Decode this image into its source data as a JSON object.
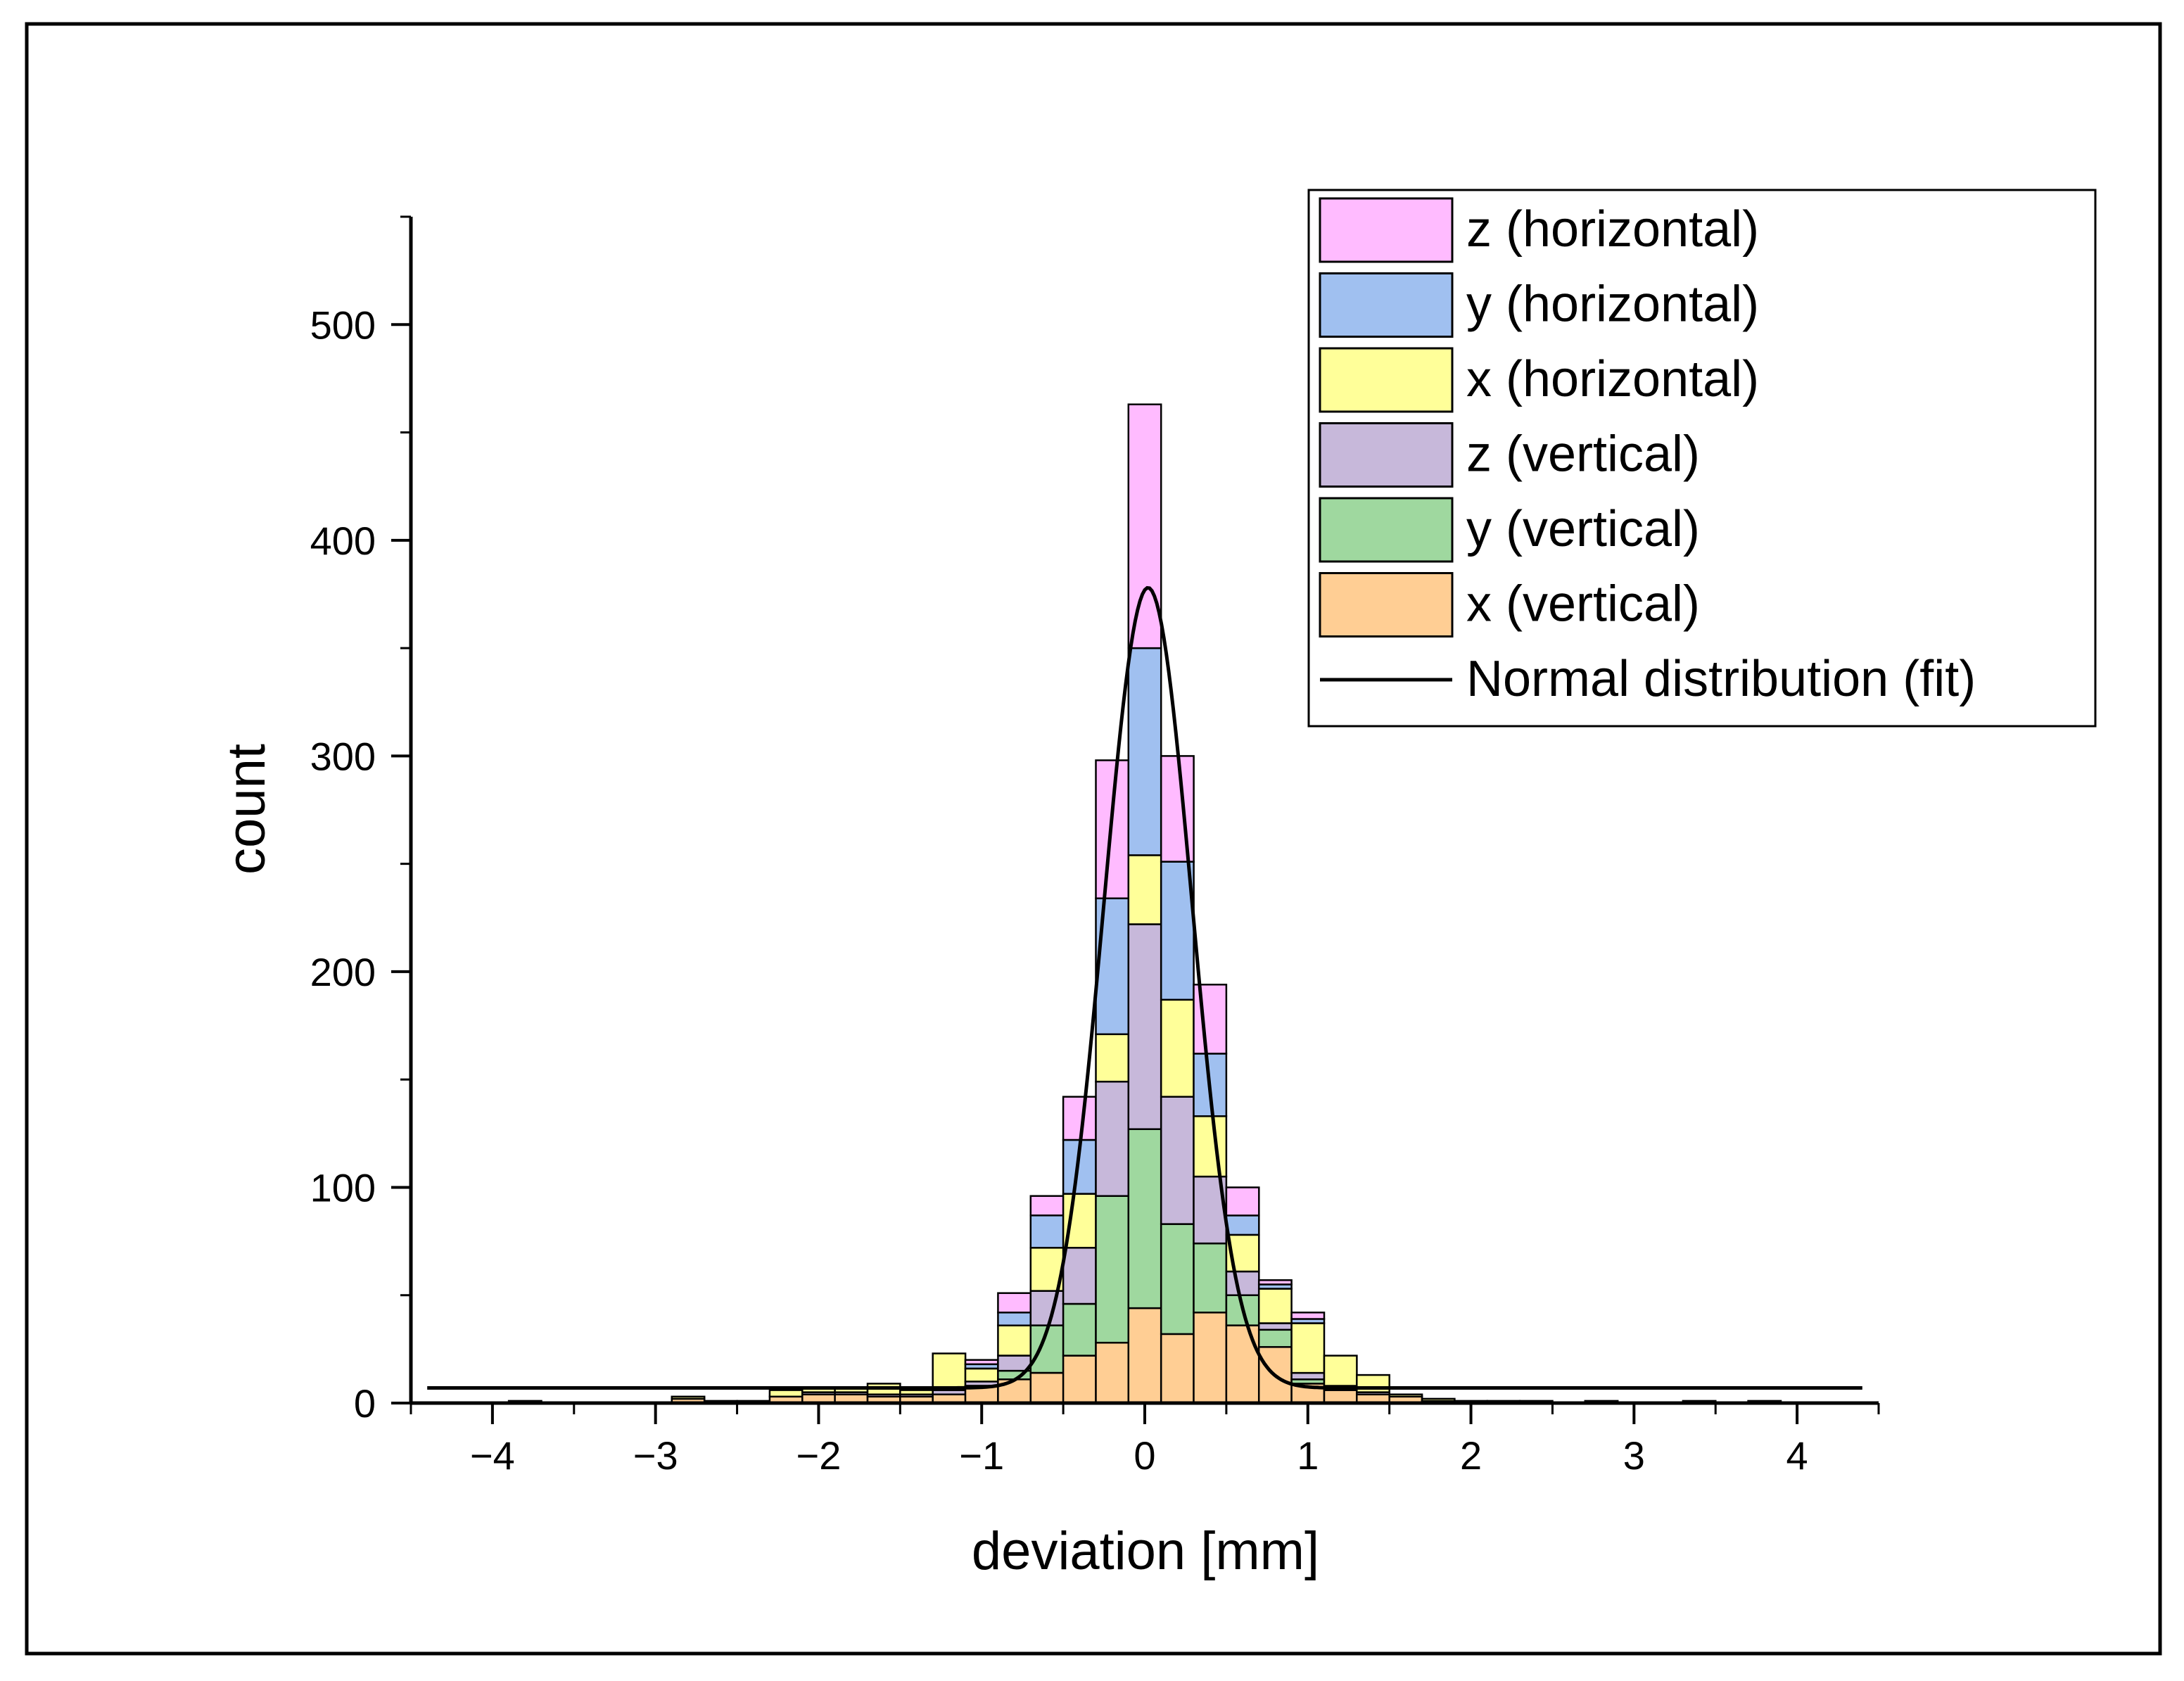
{
  "chart_data": {
    "type": "bar",
    "stacked": true,
    "xlabel": "deviation [mm]",
    "ylabel": "count",
    "xlim": [
      -4.5,
      4.5
    ],
    "ylim": [
      0,
      550
    ],
    "x_ticks": [
      -4,
      -3,
      -2,
      -1,
      0,
      1,
      2,
      3,
      4
    ],
    "x_tick_labels": [
      "−4",
      "−3",
      "−2",
      "−1",
      "0",
      "1",
      "2",
      "3",
      "4"
    ],
    "y_ticks": [
      0,
      100,
      200,
      300,
      400,
      500
    ],
    "y_tick_labels": [
      "0",
      "100",
      "200",
      "300",
      "400",
      "500"
    ],
    "bin_width": 0.2,
    "bin_centers": [
      -3.8,
      -2.8,
      -2.6,
      -2.4,
      -2.2,
      -2.0,
      -1.8,
      -1.6,
      -1.4,
      -1.2,
      -1.0,
      -0.8,
      -0.6,
      -0.4,
      -0.2,
      0.0,
      0.2,
      0.4,
      0.6,
      0.8,
      1.0,
      1.2,
      1.4,
      1.6,
      1.8,
      2.0,
      2.2,
      2.4,
      2.8,
      3.4,
      3.8
    ],
    "series": [
      {
        "name": "x (vertical)",
        "color": "#FFCE94",
        "values": [
          1,
          2,
          1,
          1,
          3,
          4,
          4,
          3,
          3,
          4,
          8,
          11,
          14,
          22,
          28,
          44,
          32,
          42,
          36,
          26,
          9,
          6,
          4,
          3,
          1,
          1,
          1,
          1,
          1,
          1,
          1
        ]
      },
      {
        "name": "y (vertical)",
        "color": "#9FD89F",
        "values": [
          0,
          0,
          0,
          0,
          0,
          0,
          0,
          0,
          0,
          0,
          0,
          4,
          22,
          24,
          68,
          83,
          51,
          32,
          14,
          8,
          2,
          0,
          0,
          0,
          0,
          0,
          0,
          0,
          0,
          0,
          0
        ]
      },
      {
        "name": "z (vertical)",
        "color": "#C7B8DA",
        "values": [
          0,
          0,
          0,
          0,
          0,
          1,
          1,
          1,
          1,
          2,
          2,
          7,
          16,
          26,
          53,
          95,
          59,
          31,
          11,
          3,
          3,
          2,
          1,
          0,
          0,
          0,
          0,
          0,
          0,
          0,
          0
        ]
      },
      {
        "name": "x (horizontal)",
        "color": "#FFFF99",
        "values": [
          0,
          1,
          0,
          0,
          3,
          2,
          2,
          5,
          2,
          17,
          6,
          14,
          20,
          25,
          22,
          32,
          45,
          28,
          17,
          16,
          23,
          14,
          8,
          1,
          1,
          0,
          0,
          0,
          0,
          0,
          0
        ]
      },
      {
        "name": "y (horizontal)",
        "color": "#A0C0F0",
        "values": [
          0,
          0,
          0,
          0,
          0,
          0,
          0,
          0,
          0,
          0,
          2,
          6,
          15,
          25,
          63,
          96,
          64,
          29,
          9,
          2,
          2,
          0,
          0,
          0,
          0,
          0,
          0,
          0,
          0,
          0,
          0
        ]
      },
      {
        "name": "z (horizontal)",
        "color": "#FFBBFF",
        "values": [
          0,
          0,
          0,
          0,
          0,
          0,
          0,
          0,
          0,
          0,
          2,
          9,
          9,
          20,
          64,
          113,
          49,
          32,
          13,
          2,
          3,
          0,
          0,
          0,
          0,
          0,
          0,
          0,
          0,
          0,
          0
        ]
      }
    ],
    "fit": {
      "name": "Normal distribution (fit)",
      "color": "#000000",
      "model": "baseline + amplitude * exp(-(x - mean)^2 / (2 * sigma^2))",
      "baseline": 7,
      "amplitude": 371,
      "mean": 0.02,
      "sigma": 0.27,
      "x_range": [
        -4.4,
        4.4
      ]
    },
    "legend_position": "top-right"
  }
}
